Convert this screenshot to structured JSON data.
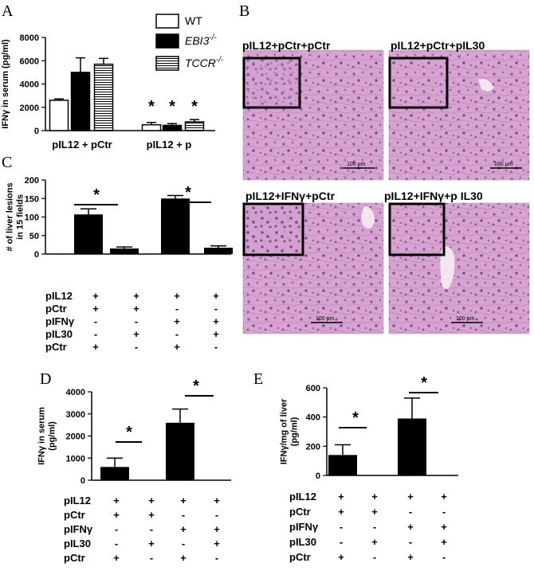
{
  "panels": {
    "A": "A",
    "B": "B",
    "C": "C",
    "D": "D",
    "E": "E"
  },
  "micrographs": [
    {
      "title": "pIL12+pCtr+pCtr",
      "scale": "100 µm"
    },
    {
      "title": "pIL12+pCtr+pIL30",
      "scale": "100 µm"
    },
    {
      "title": "pIL12+IFNγ+pCtr",
      "scale": "100 µm"
    },
    {
      "title": "pIL12+IFNγ+p IL30",
      "scale": "100 µm"
    }
  ],
  "condition_table": {
    "rows": [
      {
        "label": "pIL12",
        "signs": [
          "+",
          "+",
          "+",
          "+"
        ]
      },
      {
        "label": "pCtr",
        "signs": [
          "+",
          "+",
          "-",
          "-"
        ]
      },
      {
        "label": "pIFNγ",
        "signs": [
          "-",
          "-",
          "+",
          "+"
        ]
      },
      {
        "label": "pIL30",
        "signs": [
          "-",
          "+",
          "-",
          "+"
        ]
      },
      {
        "label": "pCtr",
        "signs": [
          "+",
          "-",
          "+",
          "-"
        ]
      }
    ]
  },
  "chart_data": [
    {
      "panel": "A",
      "type": "bar",
      "ylabel": "IFNγ in serum (pg/ml)",
      "ylim": [
        0,
        8000
      ],
      "yticks": [
        "0",
        "2000",
        "4000",
        "6000",
        "8000"
      ],
      "groups": [
        "pIL12 + pCtr",
        "pIL12 + p"
      ],
      "series": [
        {
          "name": "WT",
          "values": [
            2600,
            500
          ],
          "errors": [
            120,
            200
          ],
          "style": "white"
        },
        {
          "name": "EBI3-/-",
          "values": [
            5000,
            450
          ],
          "errors": [
            1250,
            150
          ],
          "style": "black"
        },
        {
          "name": "TCCR-/-",
          "values": [
            5700,
            750
          ],
          "errors": [
            500,
            200
          ],
          "style": "striped"
        }
      ],
      "significance": [
        "*",
        "*",
        "*"
      ]
    },
    {
      "panel": "C",
      "type": "bar",
      "ylabel": "# of liver lesions in 15 fields",
      "ylim": [
        0,
        200
      ],
      "yticks": [
        "0",
        "50",
        "100",
        "150",
        "200"
      ],
      "values": [
        107,
        15,
        150,
        17
      ],
      "errors": [
        15,
        4,
        8,
        5
      ],
      "significance": [
        "*",
        "*"
      ]
    },
    {
      "panel": "D",
      "type": "bar",
      "ylabel": "IFNγ in serum (pg/ml)",
      "ylim": [
        0,
        4000
      ],
      "yticks": [
        "0",
        "1000",
        "2000",
        "3000",
        "4000"
      ],
      "values": [
        600,
        0,
        2600,
        0
      ],
      "errors": [
        400,
        0,
        620,
        0
      ],
      "significance": [
        "*",
        "*"
      ]
    },
    {
      "panel": "E",
      "type": "bar",
      "ylabel": "IFNγ/mg of liver (pg/ml)",
      "ylim": [
        0,
        600
      ],
      "yticks": [
        "0",
        "200",
        "400",
        "600"
      ],
      "values": [
        140,
        0,
        390,
        0
      ],
      "errors": [
        70,
        0,
        140,
        0
      ],
      "significance": [
        "*",
        "*"
      ]
    }
  ]
}
